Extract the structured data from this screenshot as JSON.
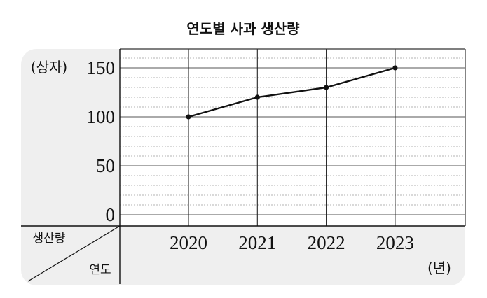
{
  "chart_data": {
    "type": "line",
    "title": "연도별 사과 생산량",
    "ylabel": "(상자)",
    "xunit": "(년)",
    "corner_top_label": "생산량",
    "corner_bottom_label": "연도",
    "categories": [
      "2020",
      "2021",
      "2022",
      "2023"
    ],
    "series": [
      {
        "values": [
          100,
          120,
          130,
          150
        ]
      }
    ],
    "ylim": [
      0,
      180
    ],
    "yticks": [
      0,
      50,
      100,
      150
    ],
    "minor_step": 10,
    "grid": true,
    "colors": {
      "line": "#111111",
      "panel": "#efefef",
      "grid_major": "#555555",
      "grid_minor": "#9a9a9a"
    }
  }
}
